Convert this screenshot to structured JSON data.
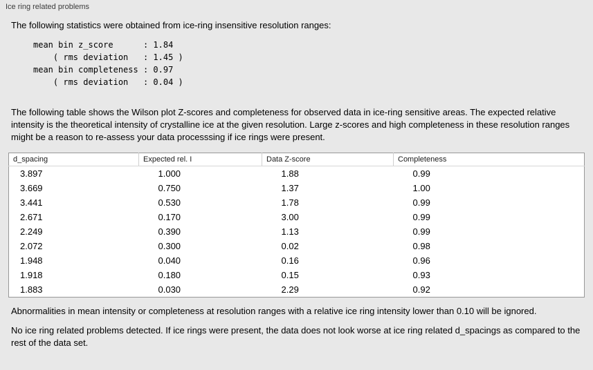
{
  "title": "Ice ring related problems",
  "intro": "The following statistics were obtained from ice-ring insensitive resolution ranges:",
  "stats_block": "mean bin z_score      : 1.84\n    ( rms deviation   : 1.45 )\nmean bin completeness : 0.97\n    ( rms deviation   : 0.04 )",
  "table_description": "The following table shows the Wilson plot Z-scores and completeness for observed data in ice-ring sensitive areas. The expected relative intensity is the theoretical intensity of crystalline ice at the given resolution. Large z-scores and high completeness in these resolution ranges might be a reason to re-assess your data processsing if ice rings were present.",
  "table": {
    "columns": [
      "d_spacing",
      "Expected rel. I",
      "Data Z-score",
      "Completeness"
    ],
    "rows": [
      [
        "3.897",
        "1.000",
        "1.88",
        "0.99"
      ],
      [
        "3.669",
        "0.750",
        "1.37",
        "1.00"
      ],
      [
        "3.441",
        "0.530",
        "1.78",
        "0.99"
      ],
      [
        "2.671",
        "0.170",
        "3.00",
        "0.99"
      ],
      [
        "2.249",
        "0.390",
        "1.13",
        "0.99"
      ],
      [
        "2.072",
        "0.300",
        "0.02",
        "0.98"
      ],
      [
        "1.948",
        "0.040",
        "0.16",
        "0.96"
      ],
      [
        "1.918",
        "0.180",
        "0.15",
        "0.93"
      ],
      [
        "1.883",
        "0.030",
        "2.29",
        "0.92"
      ]
    ]
  },
  "note_ignore": "Abnormalities in mean intensity or completeness at resolution ranges with a relative ice ring intensity lower than 0.10 will be ignored.",
  "conclusion": "No ice ring related problems detected. If ice rings were present, the data does not look worse at ice ring related d_spacings as compared to the rest of the data set."
}
